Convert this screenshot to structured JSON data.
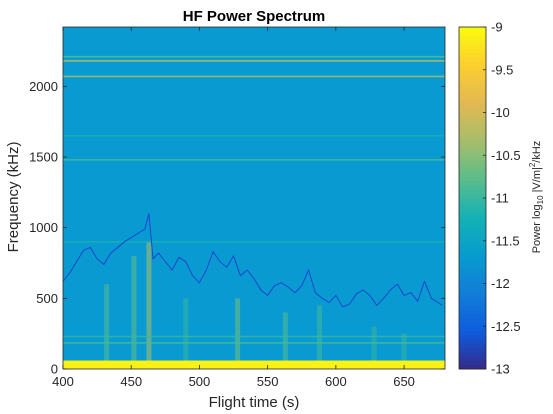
{
  "chart_data": {
    "type": "heatmap",
    "title": "HF Power Spectrum",
    "xlabel": "Flight time (s)",
    "ylabel": "Frequency (kHz)",
    "colorbar_label_base": "Power log",
    "colorbar_label_sub": "10",
    "colorbar_label_mid": " |V/m|",
    "colorbar_label_sup": "2",
    "colorbar_label_end": "/kHz",
    "xlim": [
      400,
      680
    ],
    "ylim": [
      0,
      2420
    ],
    "clim": [
      -13,
      -9
    ],
    "colormap": "parula",
    "xticks": [
      "400",
      "450",
      "500",
      "550",
      "600",
      "650"
    ],
    "xtick_values": [
      400,
      450,
      500,
      550,
      600,
      650
    ],
    "yticks": [
      "0",
      "500",
      "1000",
      "1500",
      "2000"
    ],
    "ytick_values": [
      0,
      500,
      1000,
      1500,
      2000
    ],
    "cticks": [
      "-9",
      "-9.5",
      "-10",
      "-10.5",
      "-11",
      "-11.5",
      "-12",
      "-12.5",
      "-13"
    ],
    "ctick_values": [
      -9,
      -9.5,
      -10,
      -10.5,
      -11,
      -11.5,
      -12,
      -12.5,
      -13
    ],
    "background_level": -11.7,
    "horizontal_lines": [
      {
        "freq_khz": 2210,
        "level": -10.8
      },
      {
        "freq_khz": 2180,
        "level": -10.2
      },
      {
        "freq_khz": 2070,
        "level": -10.3
      },
      {
        "freq_khz": 1480,
        "level": -10.9
      },
      {
        "freq_khz": 1650,
        "level": -11.2
      },
      {
        "freq_khz": 900,
        "level": -11.2
      },
      {
        "freq_khz": 230,
        "level": -11.0
      },
      {
        "freq_khz": 185,
        "level": -10.9
      }
    ],
    "vertical_bursts": [
      {
        "time_s": 432,
        "top_khz": 600,
        "level": -10.8
      },
      {
        "time_s": 452,
        "top_khz": 800,
        "level": -10.7
      },
      {
        "time_s": 463,
        "top_khz": 900,
        "level": -10.2
      },
      {
        "time_s": 490,
        "top_khz": 500,
        "level": -11.0
      },
      {
        "time_s": 528,
        "top_khz": 500,
        "level": -10.6
      },
      {
        "time_s": 563,
        "top_khz": 400,
        "level": -10.8
      },
      {
        "time_s": 588,
        "top_khz": 450,
        "level": -10.9
      },
      {
        "time_s": 628,
        "top_khz": 300,
        "level": -11.0
      },
      {
        "time_s": 650,
        "top_khz": 250,
        "level": -11.0
      }
    ],
    "low_freq_band": {
      "top_khz": 60,
      "level": -9.1
    },
    "plasma_line": {
      "name": "",
      "x": [
        400,
        405,
        410,
        415,
        420,
        425,
        430,
        435,
        440,
        445,
        450,
        455,
        460,
        463,
        466,
        470,
        475,
        480,
        485,
        490,
        495,
        500,
        505,
        510,
        515,
        520,
        525,
        530,
        535,
        540,
        545,
        550,
        555,
        560,
        565,
        570,
        575,
        580,
        585,
        590,
        595,
        600,
        605,
        610,
        615,
        620,
        625,
        630,
        635,
        640,
        645,
        650,
        655,
        660,
        665,
        670,
        675,
        678
      ],
      "y": [
        620,
        680,
        760,
        840,
        860,
        780,
        740,
        820,
        860,
        900,
        930,
        960,
        990,
        1100,
        780,
        820,
        760,
        700,
        790,
        760,
        660,
        610,
        700,
        830,
        760,
        720,
        800,
        660,
        700,
        640,
        560,
        520,
        590,
        610,
        580,
        540,
        590,
        700,
        540,
        500,
        470,
        520,
        440,
        460,
        530,
        560,
        520,
        450,
        500,
        560,
        600,
        520,
        540,
        480,
        620,
        500,
        470,
        450
      ]
    }
  }
}
